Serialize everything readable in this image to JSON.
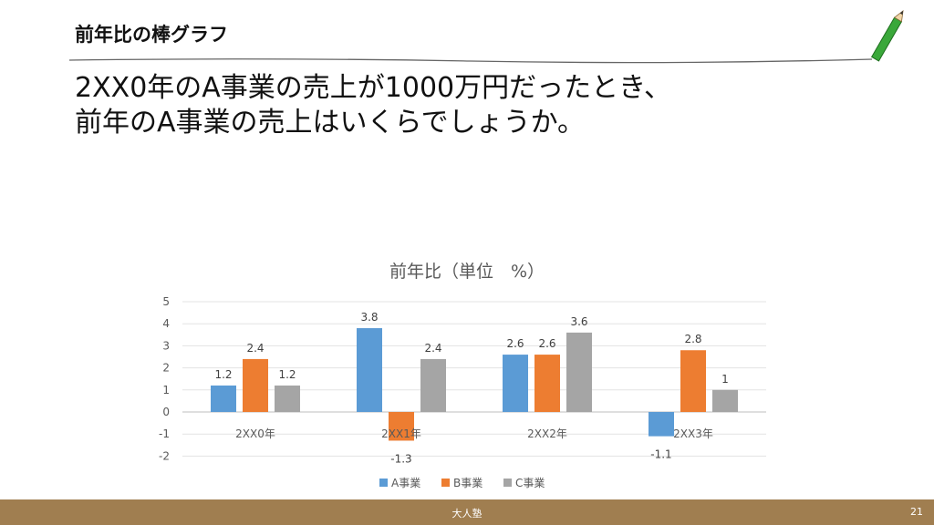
{
  "slide": {
    "title": "前年比の棒グラフ",
    "question_line1": "2XX0年のA事業の売上が1000万円だったとき、",
    "question_line2": "前年のA事業の売上はいくらでしょうか。"
  },
  "footer": {
    "name": "大人塾",
    "page": "21"
  },
  "colors": {
    "A": "#5b9bd5",
    "B": "#ed7d31",
    "C": "#a5a5a5",
    "footer": "#a07e50"
  },
  "chart_data": {
    "type": "bar",
    "title": "前年比（単位　%）",
    "categories": [
      "2XX0年",
      "2XX1年",
      "2XX2年",
      "2XX3年"
    ],
    "series": [
      {
        "name": "A事業",
        "values": [
          1.2,
          3.8,
          2.6,
          -1.1
        ]
      },
      {
        "name": "B事業",
        "values": [
          2.4,
          -1.3,
          2.6,
          2.8
        ]
      },
      {
        "name": "C事業",
        "values": [
          1.2,
          2.4,
          3.6,
          1
        ]
      }
    ],
    "yticks": [
      "5",
      "4",
      "3",
      "2",
      "1",
      "0",
      "-1",
      "-2"
    ],
    "ylim": [
      -2,
      5
    ],
    "grid": true,
    "legend": "bottom"
  }
}
